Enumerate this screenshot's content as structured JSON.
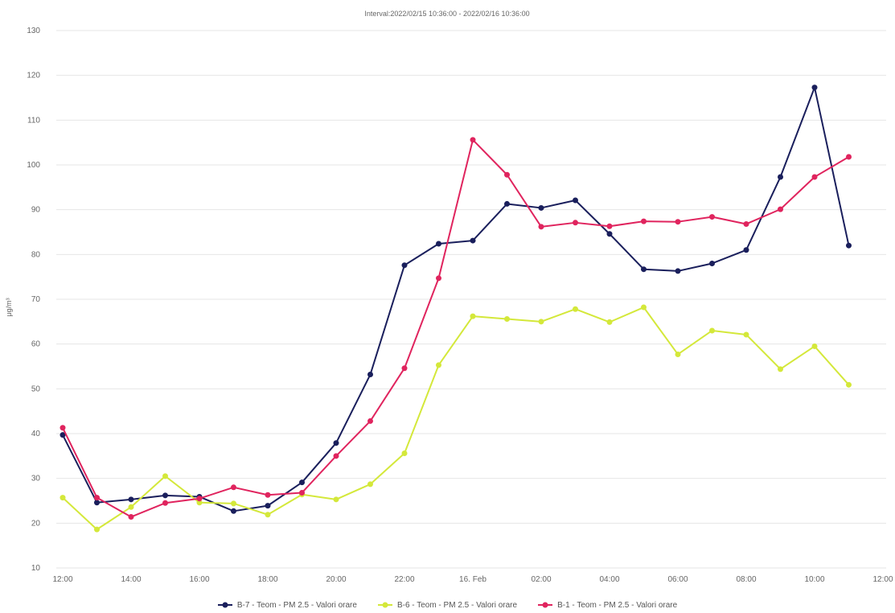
{
  "chart_data": {
    "type": "line",
    "title": "Interval:2022/02/15 10:36:00 - 2022/02/16 10:36:00",
    "ylabel": "μg/m³",
    "xlabel": "",
    "ylim": [
      10,
      130
    ],
    "yticks": [
      10,
      20,
      30,
      40,
      50,
      60,
      70,
      80,
      90,
      100,
      110,
      120,
      130
    ],
    "xlim": [
      0,
      24
    ],
    "xticks": [
      {
        "x": 0,
        "label": "12:00"
      },
      {
        "x": 2,
        "label": "14:00"
      },
      {
        "x": 4,
        "label": "16:00"
      },
      {
        "x": 6,
        "label": "18:00"
      },
      {
        "x": 8,
        "label": "20:00"
      },
      {
        "x": 10,
        "label": "22:00"
      },
      {
        "x": 12,
        "label": "16. Feb"
      },
      {
        "x": 14,
        "label": "02:00"
      },
      {
        "x": 16,
        "label": "04:00"
      },
      {
        "x": 18,
        "label": "06:00"
      },
      {
        "x": 20,
        "label": "08:00"
      },
      {
        "x": 22,
        "label": "10:00"
      },
      {
        "x": 24,
        "label": "12:00"
      }
    ],
    "x": [
      0,
      1,
      2,
      3,
      4,
      5,
      6,
      7,
      8,
      9,
      10,
      11,
      12,
      13,
      14,
      15,
      16,
      17,
      18,
      19,
      20,
      21,
      22,
      23
    ],
    "grid": true,
    "legend_position": "bottom",
    "series": [
      {
        "name": "B-7 - Teom - PM 2.5 - Valori orare",
        "color": "#1a1f5c",
        "values": [
          39.7,
          24.6,
          25.3,
          26.2,
          25.9,
          22.7,
          23.9,
          29.1,
          37.9,
          53.2,
          77.6,
          82.4,
          83.1,
          91.3,
          90.4,
          92.1,
          84.6,
          76.7,
          76.3,
          78.0,
          81.0,
          97.3,
          117.3,
          82.0
        ]
      },
      {
        "name": "B-6 - Teom - PM 2.5 - Valori orare",
        "color": "#d4e83a",
        "values": [
          25.7,
          18.6,
          23.6,
          30.5,
          24.6,
          24.4,
          21.9,
          26.4,
          25.3,
          28.7,
          35.6,
          55.3,
          66.2,
          65.6,
          65.0,
          67.8,
          64.9,
          68.2,
          57.7,
          63.0,
          62.1,
          54.4,
          59.5,
          50.9
        ]
      },
      {
        "name": "B-1 - Teom - PM 2.5 - Valori orare",
        "color": "#e0245e",
        "values": [
          41.3,
          25.7,
          21.4,
          24.5,
          25.5,
          28.0,
          26.3,
          26.8,
          35.0,
          42.8,
          54.6,
          74.7,
          105.6,
          97.8,
          86.2,
          87.1,
          86.3,
          87.4,
          87.3,
          88.4,
          86.8,
          90.1,
          97.3,
          101.8
        ]
      }
    ]
  }
}
